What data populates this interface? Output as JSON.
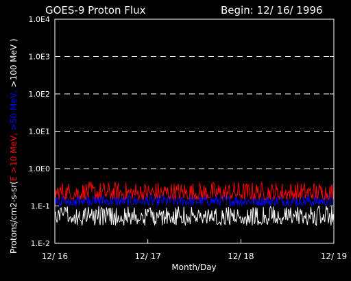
{
  "chart_data": {
    "type": "line",
    "title": "GOES-9 Proton Flux",
    "begin_label": "Begin: 12/ 16/ 1996",
    "xlabel": "Month/Day",
    "ylabel_parts": [
      {
        "text": "Protons/cm2-s-sr(",
        "color": "#ffffff"
      },
      {
        "text": "E >10 MeV, ",
        "color": "#ff0000"
      },
      {
        "text": ">50 MeV, ",
        "color": "#0000ff"
      },
      {
        "text": ">100 MeV )",
        "color": "#ffffff"
      }
    ],
    "x_ticks": [
      "12/ 16",
      "12/ 17",
      "12/ 18",
      "12/ 19"
    ],
    "xlim_days": [
      0,
      3
    ],
    "y_scale": "log",
    "ylim": [
      0.01,
      10000
    ],
    "y_ticks": [
      {
        "value": 0.01,
        "label": "1.E-2"
      },
      {
        "value": 0.1,
        "label": "1.E-1"
      },
      {
        "value": 1,
        "label": "1.0E0"
      },
      {
        "value": 10,
        "label": "1.0E1"
      },
      {
        "value": 100,
        "label": "1.0E2"
      },
      {
        "value": 1000,
        "label": "1.0E3"
      },
      {
        "value": 10000,
        "label": "1.0E4"
      }
    ],
    "grid_lines_at": [
      1,
      10,
      100,
      1000
    ],
    "series": [
      {
        "name": "E >10 MeV",
        "color": "#ff0000",
        "typical_range": [
          0.15,
          0.45
        ]
      },
      {
        "name": ">50 MeV",
        "color": "#0000ff",
        "typical_range": [
          0.1,
          0.2
        ]
      },
      {
        "name": ">100 MeV",
        "color": "#ffffff",
        "typical_range": [
          0.03,
          0.1
        ]
      }
    ]
  }
}
